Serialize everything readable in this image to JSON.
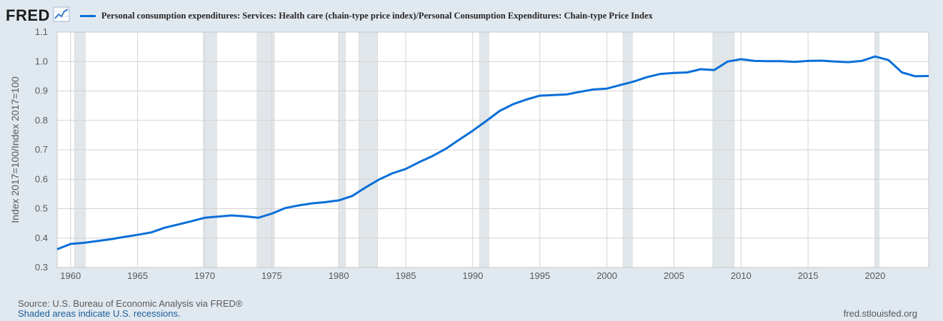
{
  "header": {
    "logo_text": "FRED",
    "logo_icon": "trend-line-icon",
    "legend_label": "Personal consumption expenditures: Services: Health care (chain-type price index)/Personal Consumption Expenditures: Chain-type Price Index",
    "series_color": "#0b6fd8"
  },
  "footer": {
    "source": "Source: U.S. Bureau of Economic Analysis via FRED®",
    "note": "Shaded areas indicate U.S. recessions.",
    "site": "fred.stlouisfed.org"
  },
  "chart_data": {
    "type": "line",
    "title": "",
    "xlabel": "",
    "ylabel": "Index 2017=100/Index 2017=100",
    "xlim": [
      1959,
      2024
    ],
    "ylim": [
      0.3,
      1.1
    ],
    "x_ticks": [
      "1960",
      "1965",
      "1970",
      "1975",
      "1980",
      "1985",
      "1990",
      "1995",
      "2000",
      "2005",
      "2010",
      "2015",
      "2020"
    ],
    "y_ticks": [
      "0.3",
      "0.4",
      "0.5",
      "0.6",
      "0.7",
      "0.8",
      "0.9",
      "1.0",
      "1.1"
    ],
    "grid": true,
    "recessions": [
      [
        1960.3,
        1961.1
      ],
      [
        1969.9,
        1970.9
      ],
      [
        1973.9,
        1975.2
      ],
      [
        1980.0,
        1980.5
      ],
      [
        1981.5,
        1982.9
      ],
      [
        1990.5,
        1991.2
      ],
      [
        2001.2,
        2001.9
      ],
      [
        2007.9,
        2009.5
      ],
      [
        2020.0,
        2020.3
      ]
    ],
    "series": [
      {
        "x": [
          1959,
          1960,
          1961,
          1962,
          1963,
          1964,
          1965,
          1966,
          1967,
          1968,
          1969,
          1970,
          1971,
          1972,
          1973,
          1974,
          1975,
          1976,
          1977,
          1978,
          1979,
          1980,
          1981,
          1982,
          1983,
          1984,
          1985,
          1986,
          1987,
          1988,
          1989,
          1990,
          1991,
          1992,
          1993,
          1994,
          1995,
          1996,
          1997,
          1998,
          1999,
          2000,
          2001,
          2002,
          2003,
          2004,
          2005,
          2006,
          2007,
          2008,
          2009,
          2010,
          2011,
          2012,
          2013,
          2014,
          2015,
          2016,
          2017,
          2018,
          2019,
          2020,
          2021,
          2022,
          2023,
          2024
        ],
        "values": [
          0.362,
          0.38,
          0.384,
          0.39,
          0.396,
          0.404,
          0.411,
          0.419,
          0.435,
          0.446,
          0.457,
          0.469,
          0.473,
          0.477,
          0.474,
          0.469,
          0.483,
          0.502,
          0.511,
          0.518,
          0.522,
          0.528,
          0.543,
          0.572,
          0.599,
          0.62,
          0.635,
          0.658,
          0.679,
          0.704,
          0.735,
          0.765,
          0.798,
          0.832,
          0.855,
          0.871,
          0.884,
          0.886,
          0.888,
          0.897,
          0.905,
          0.908,
          0.92,
          0.932,
          0.947,
          0.958,
          0.961,
          0.963,
          0.974,
          0.971,
          1.0,
          1.008,
          1.002,
          1.001,
          1.001,
          0.999,
          1.002,
          1.003,
          1.0,
          0.998,
          1.002,
          1.017,
          1.005,
          0.963,
          0.95,
          0.951
        ]
      }
    ]
  }
}
